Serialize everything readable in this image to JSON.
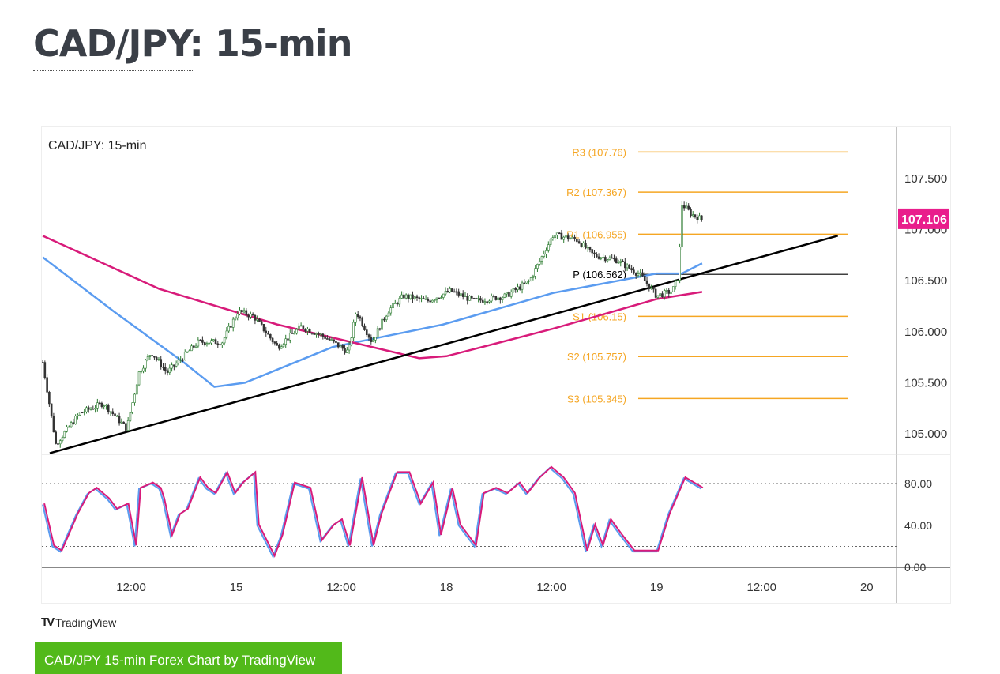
{
  "page": {
    "title": "CAD/JPY: 15-min",
    "button_label": "CAD/JPY 15-min Forex Chart by TradingView",
    "brand": "TradingView"
  },
  "chart_data": {
    "type": "candlestick",
    "title": "CAD/JPY: 15-min",
    "ylim": [
      104.8,
      107.95
    ],
    "y_ticks": [
      "107.500",
      "107.000",
      "106.500",
      "106.000",
      "105.500",
      "105.000"
    ],
    "y_tick_values": [
      107.5,
      107.0,
      106.5,
      106.0,
      105.5,
      105.0
    ],
    "last_price": "107.106",
    "x_unit": "hours since 14th 00:00 (weekend skipped)",
    "x_ticks": [
      {
        "h": 12,
        "label": "12:00"
      },
      {
        "h": 24,
        "label": "15"
      },
      {
        "h": 36,
        "label": "12:00"
      },
      {
        "h": 48,
        "label": "18"
      },
      {
        "h": 60,
        "label": "12:00"
      },
      {
        "h": 72,
        "label": "19"
      },
      {
        "h": 84,
        "label": "12:00"
      },
      {
        "h": 96,
        "label": "20"
      }
    ],
    "pivots": [
      {
        "label": "R3 (107.76)",
        "value": 107.76,
        "color": "#f5a623"
      },
      {
        "label": "R2 (107.367)",
        "value": 107.367,
        "color": "#f5a623"
      },
      {
        "label": "R1 (106.955)",
        "value": 106.955,
        "color": "#f5a623"
      },
      {
        "label": "P (106.562)",
        "value": 106.562,
        "color": "#000000"
      },
      {
        "label": "S1 (106.15)",
        "value": 106.15,
        "color": "#f5a623"
      },
      {
        "label": "S2 (105.757)",
        "value": 105.757,
        "color": "#f5a623"
      },
      {
        "label": "S3 (105.345)",
        "value": 105.345,
        "color": "#f5a623"
      }
    ],
    "price_path": [
      [
        1.9,
        105.7
      ],
      [
        3.4,
        104.9
      ],
      [
        6.1,
        105.2
      ],
      [
        8.8,
        105.3
      ],
      [
        11.5,
        105.05
      ],
      [
        12.9,
        105.6
      ],
      [
        14.3,
        105.8
      ],
      [
        16.1,
        105.6
      ],
      [
        17.9,
        105.75
      ],
      [
        19.7,
        105.9
      ],
      [
        22.4,
        105.9
      ],
      [
        24.2,
        106.2
      ],
      [
        26.0,
        106.15
      ],
      [
        28.7,
        105.85
      ],
      [
        31.4,
        106.05
      ],
      [
        34.1,
        105.95
      ],
      [
        36.8,
        105.8
      ],
      [
        37.7,
        106.2
      ],
      [
        39.5,
        105.9
      ],
      [
        41.3,
        106.2
      ],
      [
        43.1,
        106.35
      ],
      [
        45.8,
        106.3
      ],
      [
        48.5,
        106.4
      ],
      [
        51.2,
        106.3
      ],
      [
        54.8,
        106.35
      ],
      [
        57.5,
        106.5
      ],
      [
        60.2,
        106.95
      ],
      [
        62.9,
        106.9
      ],
      [
        64.8,
        106.75
      ],
      [
        67.5,
        106.7
      ],
      [
        70.2,
        106.55
      ],
      [
        72.0,
        106.35
      ],
      [
        73.8,
        106.4
      ],
      [
        74.5,
        106.55
      ],
      [
        74.9,
        107.25
      ],
      [
        76.0,
        107.15
      ],
      [
        77.2,
        107.1
      ]
    ],
    "ma_fast": {
      "color": "#5b9cf0",
      "points": [
        [
          1.9,
          106.73
        ],
        [
          10,
          106.2
        ],
        [
          18,
          105.7
        ],
        [
          21.5,
          105.46
        ],
        [
          25,
          105.5
        ],
        [
          35,
          105.85
        ],
        [
          47.6,
          106.07
        ],
        [
          60.2,
          106.38
        ],
        [
          72,
          106.57
        ],
        [
          74.9,
          106.57
        ],
        [
          77.2,
          106.67
        ]
      ]
    },
    "ma_slow": {
      "color": "#d81b7a",
      "points": [
        [
          1.9,
          106.94
        ],
        [
          15.2,
          106.42
        ],
        [
          28.7,
          106.07
        ],
        [
          44.9,
          105.74
        ],
        [
          48,
          105.76
        ],
        [
          60.2,
          106.03
        ],
        [
          72,
          106.32
        ],
        [
          77.2,
          106.39
        ]
      ]
    },
    "trendline": {
      "color": "#000000",
      "points": [
        [
          2.7,
          104.81
        ],
        [
          92.7,
          106.94
        ]
      ]
    },
    "stochastic": {
      "levels": [
        "80.00",
        "40.00",
        "0.00"
      ],
      "upper": 80,
      "lower": 20,
      "colors": [
        "#5b9cf0",
        "#d81b7a"
      ],
      "points": [
        [
          1.9,
          60
        ],
        [
          3,
          20
        ],
        [
          3.9,
          15
        ],
        [
          5.7,
          50
        ],
        [
          7,
          70
        ],
        [
          7.9,
          75
        ],
        [
          9.3,
          65
        ],
        [
          10.2,
          55
        ],
        [
          11.5,
          60
        ],
        [
          12.4,
          20
        ],
        [
          12.9,
          75
        ],
        [
          14.3,
          80
        ],
        [
          15.2,
          75
        ],
        [
          15.6,
          65
        ],
        [
          16.5,
          30
        ],
        [
          17.4,
          50
        ],
        [
          18.3,
          55
        ],
        [
          19.7,
          85
        ],
        [
          20.6,
          75
        ],
        [
          21.5,
          70
        ],
        [
          22.8,
          90
        ],
        [
          23.7,
          70
        ],
        [
          24.6,
          80
        ],
        [
          26,
          90
        ],
        [
          26.4,
          40
        ],
        [
          28.2,
          10
        ],
        [
          29.1,
          30
        ],
        [
          30.5,
          80
        ],
        [
          32.3,
          75
        ],
        [
          33.6,
          25
        ],
        [
          35,
          40
        ],
        [
          35.9,
          45
        ],
        [
          36.8,
          20
        ],
        [
          38.2,
          85
        ],
        [
          39.5,
          20
        ],
        [
          40.4,
          50
        ],
        [
          41.3,
          70
        ],
        [
          42.2,
          90
        ],
        [
          43.6,
          90
        ],
        [
          44.9,
          60
        ],
        [
          46.3,
          80
        ],
        [
          47.2,
          30
        ],
        [
          48.5,
          75
        ],
        [
          49.4,
          40
        ],
        [
          50.3,
          30
        ],
        [
          51.2,
          20
        ],
        [
          52.1,
          70
        ],
        [
          53.5,
          75
        ],
        [
          54.8,
          70
        ],
        [
          56.2,
          80
        ],
        [
          57.1,
          70
        ],
        [
          58.5,
          85
        ],
        [
          59.8,
          95
        ],
        [
          61.2,
          85
        ],
        [
          62.5,
          70
        ],
        [
          63.9,
          15
        ],
        [
          64.8,
          40
        ],
        [
          65.7,
          20
        ],
        [
          66.6,
          45
        ],
        [
          67.9,
          30
        ],
        [
          69.3,
          15
        ],
        [
          70.6,
          15
        ],
        [
          72,
          15
        ],
        [
          73.3,
          50
        ],
        [
          75.1,
          85
        ],
        [
          76.5,
          78
        ],
        [
          77.1,
          75
        ]
      ]
    }
  }
}
